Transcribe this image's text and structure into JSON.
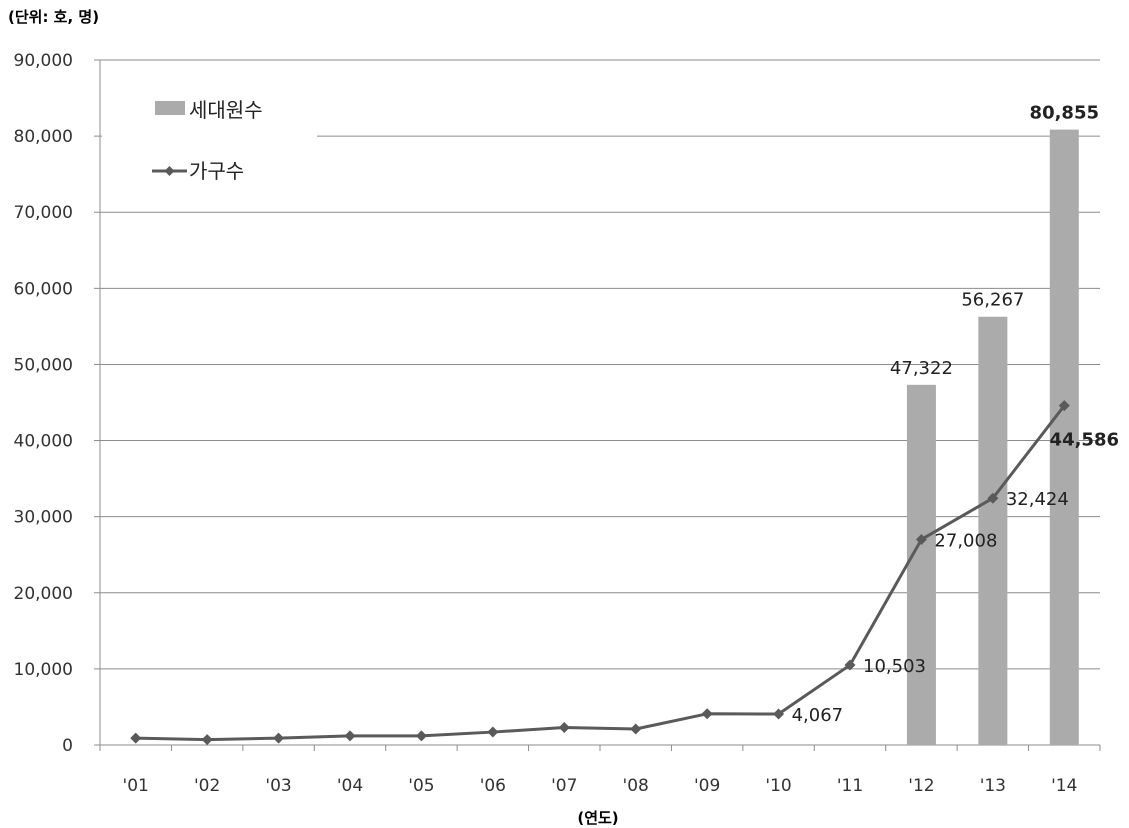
{
  "chart_data": {
    "type": "bar",
    "unit_label": "(단위: 호, 명)",
    "xlabel": "(연도)",
    "ylabel": "",
    "ylim": [
      0,
      90000
    ],
    "yticks": [
      0,
      10000,
      20000,
      30000,
      40000,
      50000,
      60000,
      70000,
      80000,
      90000
    ],
    "ytick_labels": [
      "0",
      "10,000",
      "20,000",
      "30,000",
      "40,000",
      "50,000",
      "60,000",
      "70,000",
      "80,000",
      "90,000"
    ],
    "grid": true,
    "legend_position": "top-left",
    "categories": [
      "'01",
      "'02",
      "'03",
      "'04",
      "'05",
      "'06",
      "'07",
      "'08",
      "'09",
      "'10",
      "'11",
      "'12",
      "'13",
      "'14"
    ],
    "series": [
      {
        "name": "세대원수",
        "type": "bar",
        "color": "#ababab",
        "values": [
          null,
          null,
          null,
          null,
          null,
          null,
          null,
          null,
          null,
          null,
          null,
          47322,
          56267,
          80855
        ],
        "labels": [
          null,
          null,
          null,
          null,
          null,
          null,
          null,
          null,
          null,
          null,
          null,
          "47,322",
          "56,267",
          "80,855"
        ],
        "bold_labels": [
          false,
          false,
          false,
          false,
          false,
          false,
          false,
          false,
          false,
          false,
          false,
          false,
          false,
          true
        ]
      },
      {
        "name": "가구수",
        "type": "line",
        "color": "#5a5a5a",
        "marker": "diamond",
        "values": [
          900,
          700,
          900,
          1200,
          1200,
          1700,
          2300,
          2100,
          4100,
          4067,
          10503,
          27008,
          32424,
          44586
        ],
        "labels": [
          null,
          null,
          null,
          null,
          null,
          null,
          null,
          null,
          null,
          "4,067",
          "10,503",
          "27,008",
          "32,424",
          "44,586"
        ],
        "bold_labels": [
          false,
          false,
          false,
          false,
          false,
          false,
          false,
          false,
          false,
          false,
          false,
          false,
          false,
          true
        ]
      }
    ]
  }
}
